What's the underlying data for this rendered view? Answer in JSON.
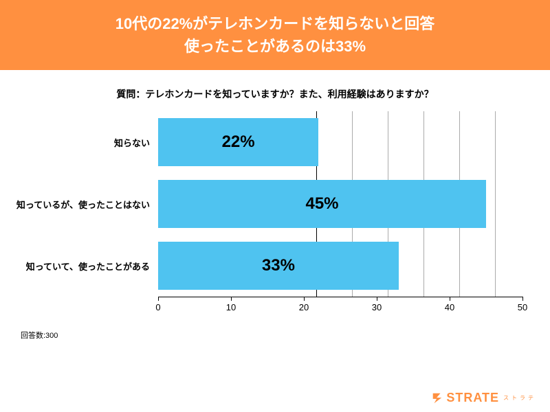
{
  "header": {
    "line1": "10代の22%がテレホンカードを知らないと回答",
    "line2": "使ったことがあるのは33%",
    "bg_color": "#ff9040",
    "text_color": "#ffffff",
    "font_size": 22
  },
  "question": {
    "text": "質問：テレホンカードを知っていますか？また、利用経験はありますか？",
    "font_size": 14
  },
  "chart": {
    "type": "bar",
    "orientation": "horizontal",
    "bar_color": "#4fc3f0",
    "value_color": "#000000",
    "value_font_size": 24,
    "label_font_size": 13,
    "xlim": [
      0,
      50
    ],
    "xtick_step": 10,
    "xticks": [
      0,
      10,
      20,
      30,
      40,
      50
    ],
    "grid_color": "#aaaaaa",
    "axis_color": "#000000",
    "background_color": "#ffffff",
    "bars": [
      {
        "label": "知らない",
        "value": 22,
        "display": "22%"
      },
      {
        "label": "知っているが、使ったことはない",
        "value": 45,
        "display": "45%"
      },
      {
        "label": "知っていて、使ったことがある",
        "value": 33,
        "display": "33%"
      }
    ]
  },
  "footer": {
    "note": "回答数:300",
    "font_size": 11
  },
  "brand": {
    "name": "STRATE",
    "sub": "ストラテ",
    "color": "#ff9040"
  }
}
